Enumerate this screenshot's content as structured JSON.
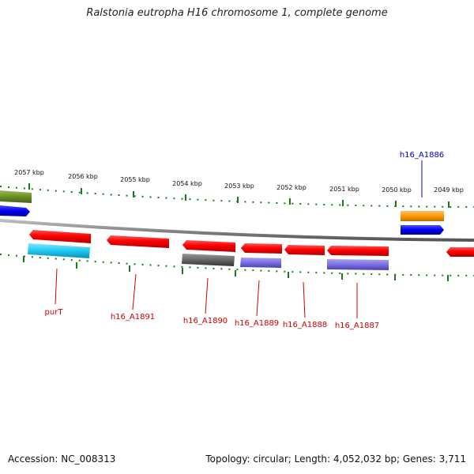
{
  "title": "Ralstonia eutropha H16 chromosome 1, complete genome",
  "footer": {
    "accession": "Accession: NC_008313",
    "summary": "Topology: circular; Length: 4,052,032 bp; Genes: 3,711"
  },
  "colors": {
    "forward_gene": "#ff0000",
    "backbone": "#888888",
    "tick": "#1a7a1a",
    "label_red": "#cc0000",
    "label_blue": "#0000cc",
    "olive": "#6b8e23",
    "blue": "#0000ee",
    "cyan": "#1ec8f0",
    "gray": "#666666",
    "slate": "#7a6fe0",
    "orange": "#ff9900"
  },
  "ruler": {
    "unit": "kbp",
    "marks": [
      "2057 kbp",
      "2056 kbp",
      "2055 kbp",
      "2054 kbp",
      "2053 kbp",
      "2052 kbp",
      "2051 kbp",
      "2050 kbp",
      "2049 kbp"
    ]
  },
  "genes": [
    {
      "name": "purT",
      "color": "red"
    },
    {
      "name": "h16_A1891",
      "color": "red"
    },
    {
      "name": "h16_A1890",
      "color": "red"
    },
    {
      "name": "h16_A1889",
      "color": "red"
    },
    {
      "name": "h16_A1888",
      "color": "red"
    },
    {
      "name": "h16_A1887",
      "color": "red"
    },
    {
      "name": "h16_A1886",
      "color": "blue"
    }
  ]
}
